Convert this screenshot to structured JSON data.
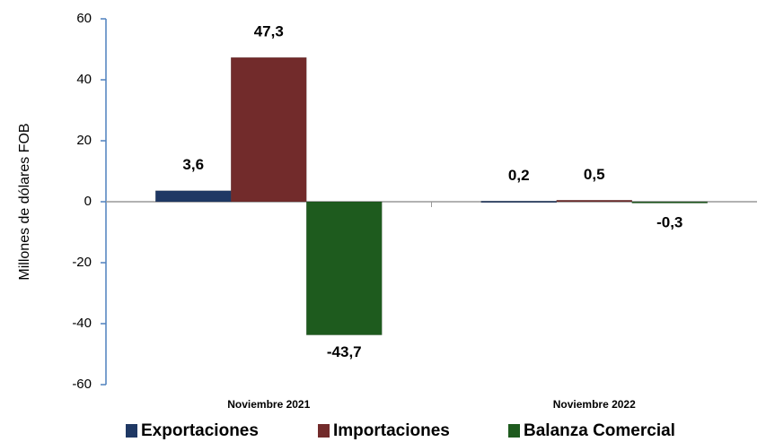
{
  "chart_data": {
    "type": "bar",
    "y_label": "Millones de dólares FOB",
    "categories": [
      "Noviembre 2021",
      "Noviembre 2022"
    ],
    "series": [
      {
        "name": "Exportaciones",
        "color": "#1f3864",
        "values": [
          3.6,
          0.2
        ],
        "value_labels": [
          "3,6",
          "0,2"
        ]
      },
      {
        "name": "Importaciones",
        "color": "#722b2b",
        "values": [
          47.3,
          0.5
        ],
        "value_labels": [
          "47,3",
          "0,5"
        ]
      },
      {
        "name": "Balanza Comercial",
        "color": "#1e5b1e",
        "values": [
          -43.7,
          -0.3
        ],
        "value_labels": [
          "-43,7",
          "-0,3"
        ]
      }
    ],
    "ylim": [
      -60,
      60
    ],
    "yticks": [
      -60,
      -40,
      -20,
      0,
      20,
      40,
      60
    ]
  }
}
